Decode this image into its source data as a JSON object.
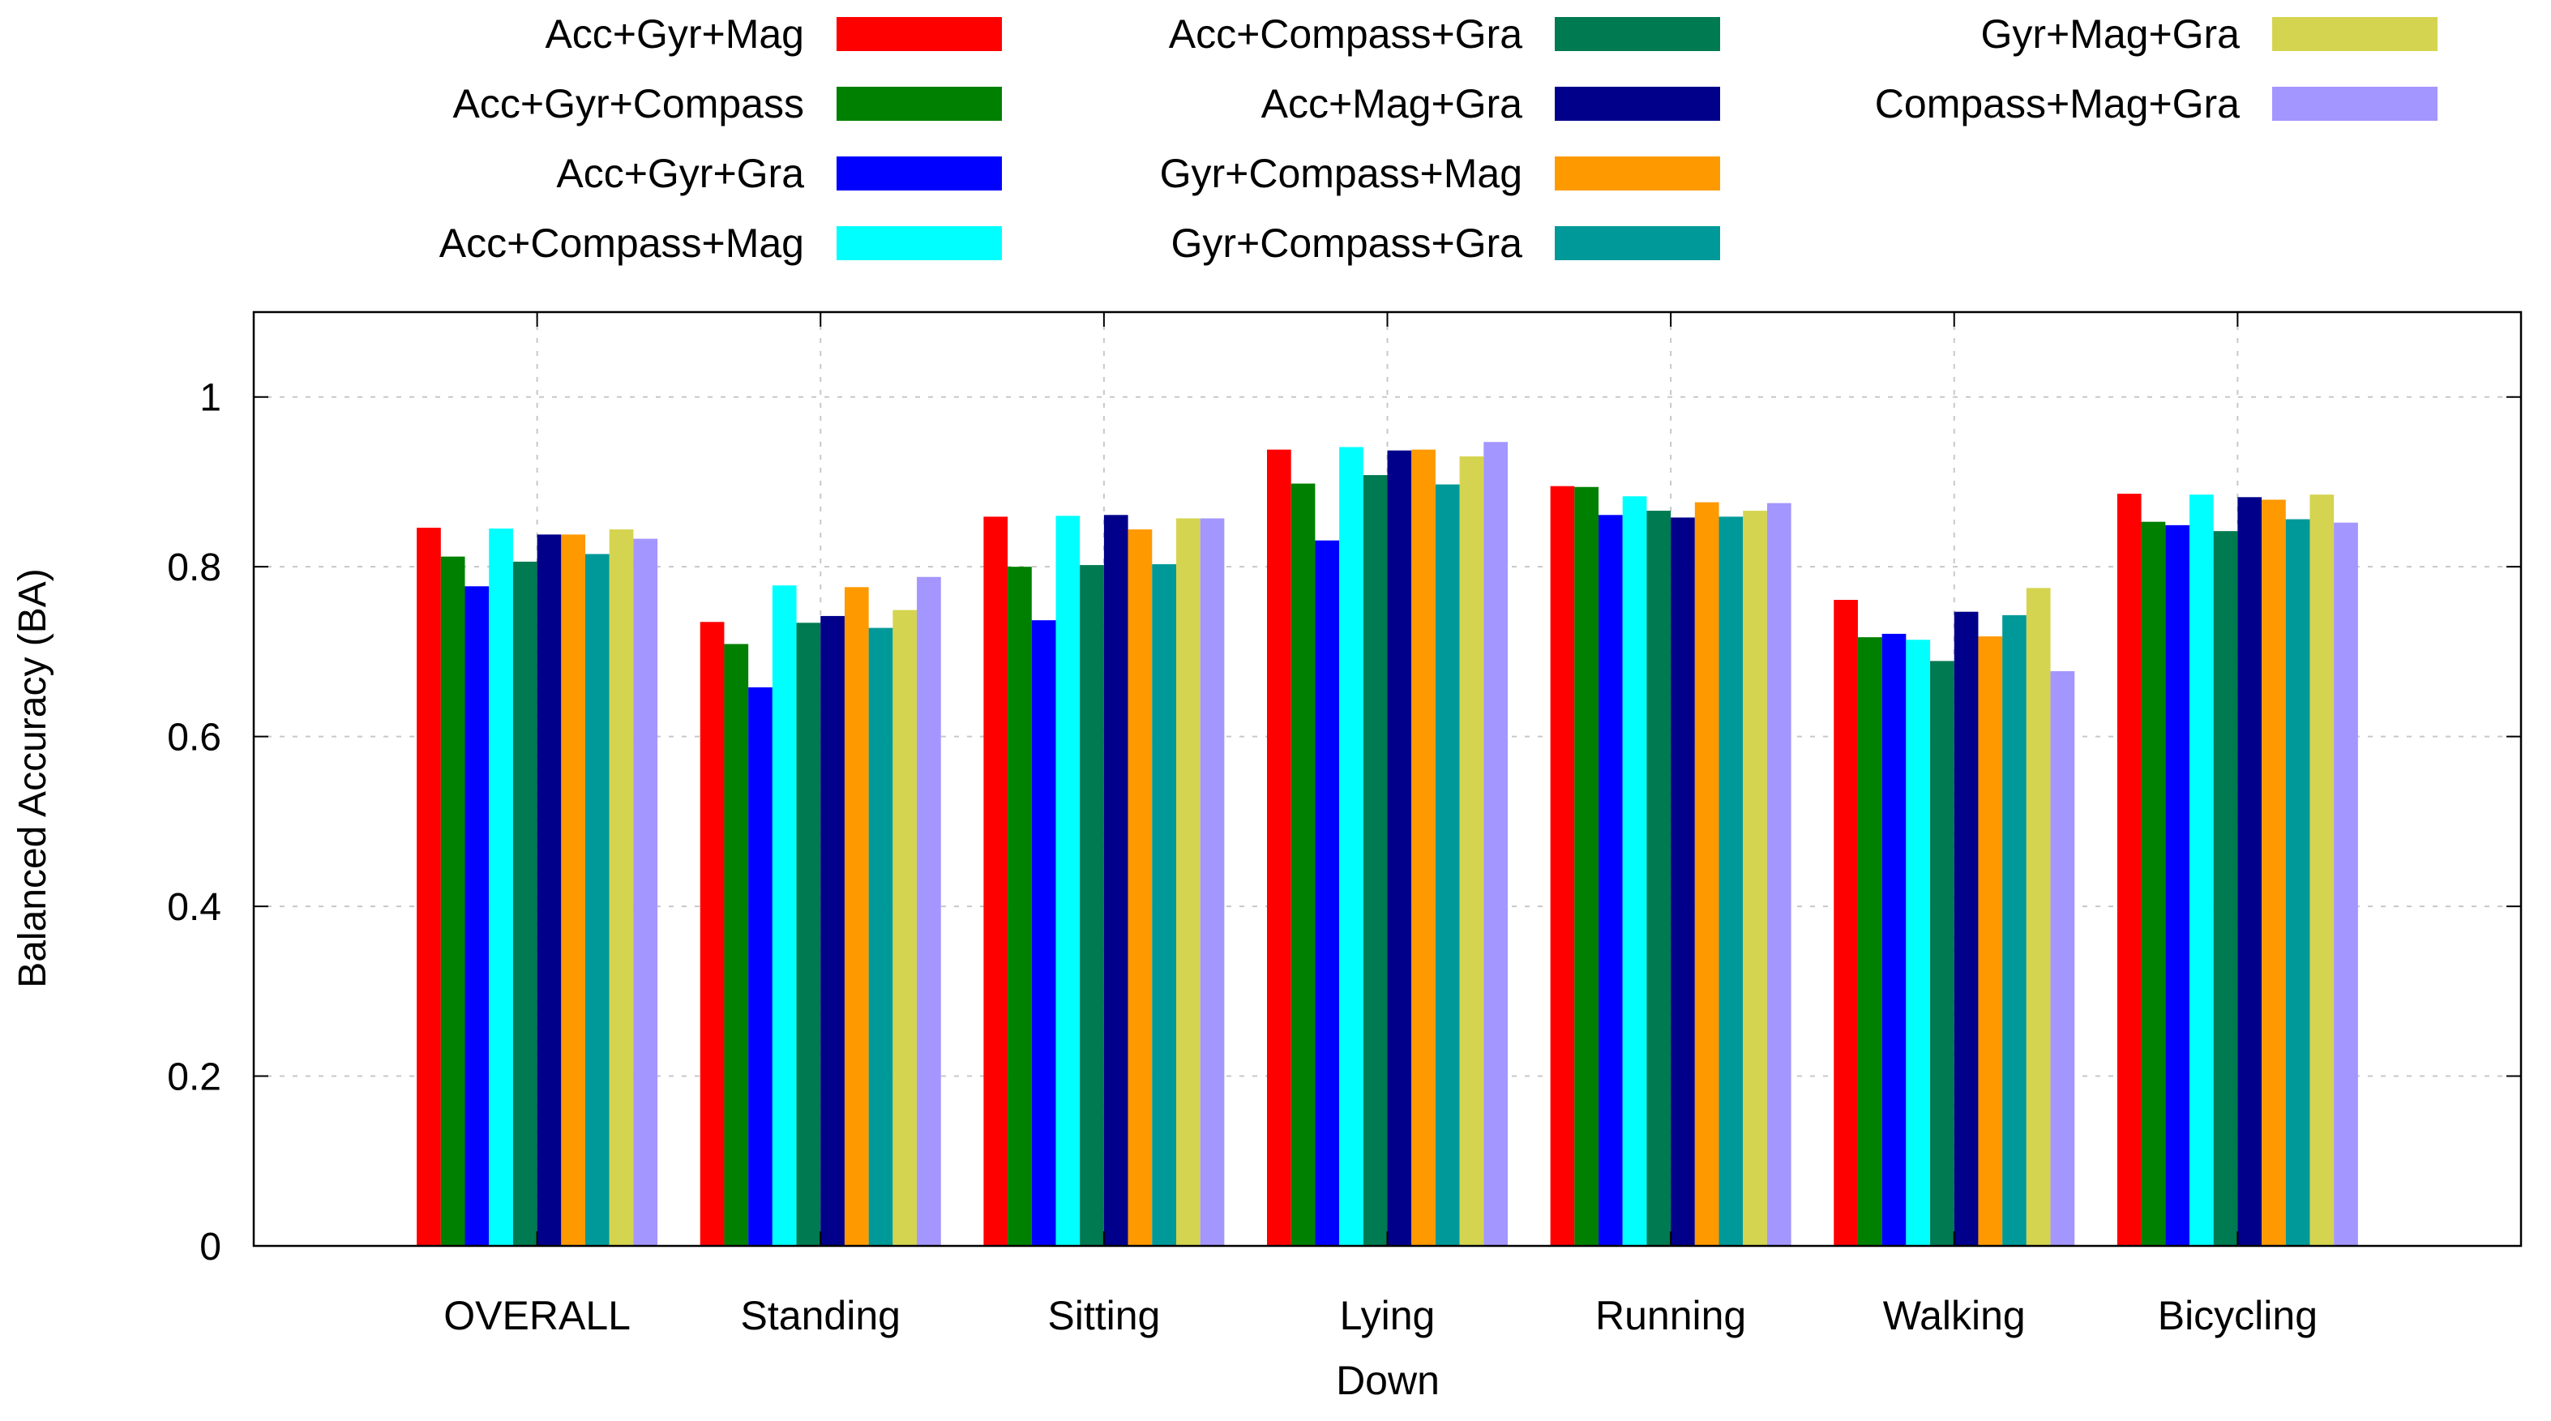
{
  "chart_data": {
    "type": "bar",
    "title": "",
    "xlabel": "Down",
    "ylabel": "Balanced Accuracy (BA)",
    "ylim": [
      0,
      1.1
    ],
    "yticks": [
      "0",
      "0.2",
      "0.4",
      "0.6",
      "0.8",
      "1"
    ],
    "ytick_values": [
      0,
      0.2,
      0.4,
      0.6,
      0.8,
      1.0
    ],
    "grid": true,
    "legend_position": "top",
    "categories": [
      "OVERALL",
      "Standing",
      "Sitting",
      "Lying",
      "Running",
      "Walking",
      "Bicycling"
    ],
    "series": [
      {
        "name": "Acc+Gyr+Mag",
        "color": "#ff0000",
        "values": [
          0.846,
          0.735,
          0.859,
          0.938,
          0.895,
          0.761,
          0.886
        ]
      },
      {
        "name": "Acc+Gyr+Compass",
        "color": "#008000",
        "values": [
          0.812,
          0.709,
          0.8,
          0.898,
          0.894,
          0.717,
          0.853
        ]
      },
      {
        "name": "Acc+Gyr+Gra",
        "color": "#0000ff",
        "values": [
          0.777,
          0.658,
          0.737,
          0.831,
          0.861,
          0.721,
          0.849
        ]
      },
      {
        "name": "Acc+Compass+Mag",
        "color": "#00ffff",
        "values": [
          0.845,
          0.778,
          0.86,
          0.941,
          0.883,
          0.714,
          0.885
        ]
      },
      {
        "name": "Acc+Compass+Gra",
        "color": "#007a50",
        "values": [
          0.806,
          0.734,
          0.802,
          0.908,
          0.866,
          0.689,
          0.842
        ]
      },
      {
        "name": "Acc+Mag+Gra",
        "color": "#00008b",
        "values": [
          0.838,
          0.742,
          0.861,
          0.937,
          0.858,
          0.747,
          0.882
        ]
      },
      {
        "name": "Gyr+Compass+Mag",
        "color": "#ff9900",
        "values": [
          0.838,
          0.776,
          0.844,
          0.938,
          0.876,
          0.718,
          0.879
        ]
      },
      {
        "name": "Gyr+Compass+Gra",
        "color": "#009999",
        "values": [
          0.815,
          0.728,
          0.803,
          0.897,
          0.859,
          0.743,
          0.856
        ]
      },
      {
        "name": "Gyr+Mag+Gra",
        "color": "#d4d450",
        "values": [
          0.844,
          0.749,
          0.857,
          0.93,
          0.866,
          0.775,
          0.885
        ]
      },
      {
        "name": "Compass+Mag+Gra",
        "color": "#a396ff",
        "values": [
          0.833,
          0.788,
          0.857,
          0.947,
          0.875,
          0.677,
          0.852
        ]
      }
    ]
  }
}
